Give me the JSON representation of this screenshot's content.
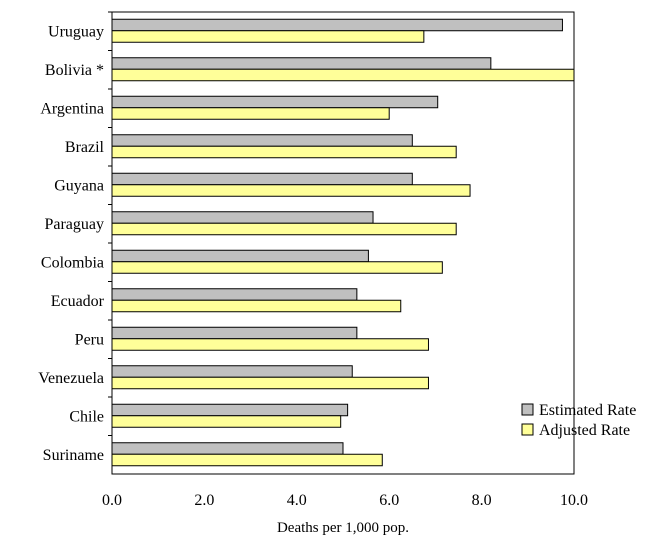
{
  "chart_data": {
    "type": "bar",
    "orientation": "horizontal",
    "categories": [
      "Uruguay",
      "Bolivia *",
      "Argentina",
      "Brazil",
      "Guyana",
      "Paraguay",
      "Colombia",
      "Ecuador",
      "Peru",
      "Venezuela",
      "Chile",
      "Suriname"
    ],
    "series": [
      {
        "name": "Estimated Rate",
        "color": "#c0c0c0",
        "values": [
          9.75,
          8.2,
          7.05,
          6.5,
          6.5,
          5.65,
          5.55,
          5.3,
          5.3,
          5.2,
          5.1,
          5.0
        ]
      },
      {
        "name": "Adjusted Rate",
        "color": "#ffff99",
        "values": [
          6.75,
          10.0,
          6.0,
          7.45,
          7.75,
          7.45,
          7.15,
          6.25,
          6.85,
          6.85,
          4.95,
          5.85
        ]
      }
    ],
    "xlabel": "Deaths per 1,000 pop.",
    "xlim": [
      0,
      10
    ],
    "xticks": [
      "0.0",
      "2.0",
      "4.0",
      "6.0",
      "8.0",
      "10.0"
    ],
    "grid": false,
    "legend_position": "bottom-right"
  }
}
